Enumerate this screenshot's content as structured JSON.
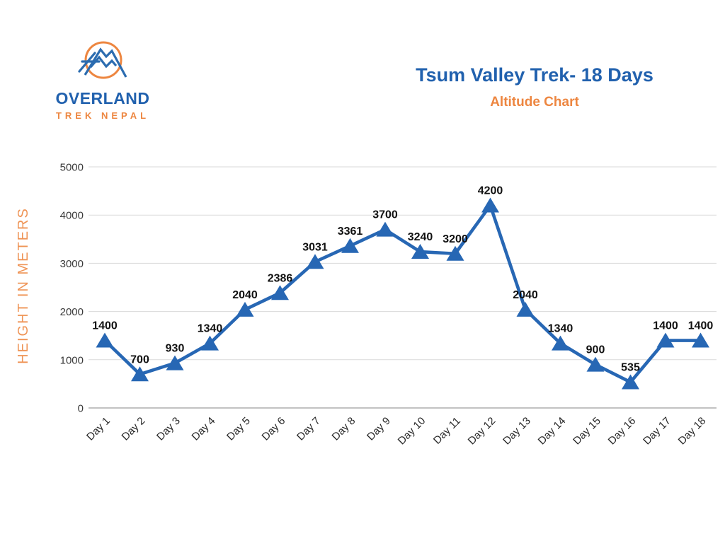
{
  "header": {
    "logo": {
      "name": "OVERLAND",
      "sub": "TREK NEPAL"
    },
    "title": "Tsum Valley Trek- 18 Days",
    "subtitle": "Altitude Chart"
  },
  "colors": {
    "title_blue": "#2161ae",
    "accent_orange": "#ed8640",
    "light_orange": "#ef9456",
    "line_blue": "#2767b4",
    "grid_gray": "#dadada",
    "axis_gray": "#adadad",
    "tick_text": "#3a3a3a",
    "data_label_text": "#111111"
  },
  "chart_data": {
    "type": "line",
    "title": "Tsum Valley Trek- 18 Days",
    "subtitle": "Altitude Chart",
    "categories": [
      "Day 1",
      "Day 2",
      "Day 3",
      "Day 4",
      "Day 5",
      "Day 6",
      "Day 7",
      "Day 8",
      "Day 9",
      "Day 10",
      "Day 11",
      "Day 12",
      "Day 13",
      "Day 14",
      "Day 15",
      "Day 16",
      "Day 17",
      "Day 18"
    ],
    "values": [
      1400,
      700,
      930,
      1340,
      2040,
      2386,
      3031,
      3361,
      3700,
      3240,
      3200,
      4200,
      2040,
      1340,
      900,
      535,
      1400,
      1400
    ],
    "xlabel": "",
    "ylabel": "HEIGHT IN METERS",
    "ylim": [
      0,
      5000
    ],
    "yticks": [
      0,
      1000,
      2000,
      3000,
      4000,
      5000
    ],
    "grid": true,
    "legend": false,
    "marker": "triangle-up",
    "data_labels": true
  }
}
